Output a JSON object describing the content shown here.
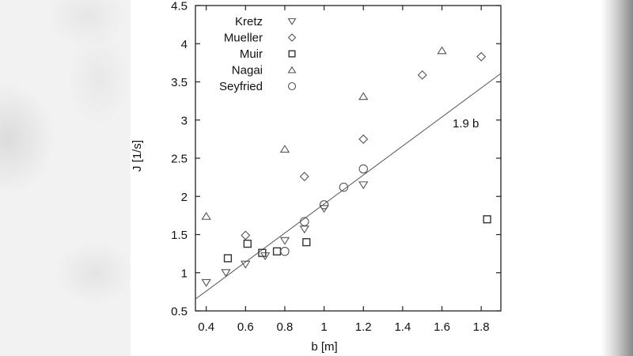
{
  "chart_data": {
    "type": "scatter",
    "title": "",
    "xlabel": "b [m]",
    "ylabel": "J [1/s]",
    "xlim": [
      0.345,
      1.9
    ],
    "ylim": [
      0.5,
      4.5
    ],
    "xticks": [
      "0.4",
      "0.6",
      "0.8",
      "1",
      "1.2",
      "1.4",
      "1.6",
      "1.8"
    ],
    "yticks": [
      "0.5",
      "1",
      "1.5",
      "2",
      "2.5",
      "3",
      "3.5",
      "4",
      "4.5"
    ],
    "grid": false,
    "legend_position": "upper-left",
    "series": [
      {
        "name": "Kretz",
        "marker": "triangle-down",
        "points": [
          [
            0.4,
            0.87
          ],
          [
            0.5,
            1.0
          ],
          [
            0.6,
            1.11
          ],
          [
            0.7,
            1.22
          ],
          [
            0.8,
            1.42
          ],
          [
            0.9,
            1.57
          ],
          [
            1.0,
            1.84
          ],
          [
            1.2,
            2.15
          ]
        ]
      },
      {
        "name": "Mueller",
        "marker": "diamond",
        "points": [
          [
            0.6,
            1.49
          ],
          [
            0.9,
            2.26
          ],
          [
            1.2,
            2.75
          ],
          [
            1.5,
            3.59
          ],
          [
            1.8,
            3.83
          ]
        ]
      },
      {
        "name": "Muir",
        "marker": "square",
        "points": [
          [
            0.51,
            1.19
          ],
          [
            0.61,
            1.38
          ],
          [
            0.685,
            1.26
          ],
          [
            0.76,
            1.28
          ],
          [
            0.91,
            1.4
          ],
          [
            1.83,
            1.7
          ]
        ]
      },
      {
        "name": "Nagai",
        "marker": "triangle-up",
        "points": [
          [
            0.4,
            1.74
          ],
          [
            0.8,
            2.62
          ],
          [
            1.2,
            3.31
          ],
          [
            1.6,
            3.91
          ]
        ]
      },
      {
        "name": "Seyfried",
        "marker": "circle",
        "points": [
          [
            0.8,
            1.28
          ],
          [
            0.9,
            1.67
          ],
          [
            1.0,
            1.89
          ],
          [
            1.1,
            2.12
          ],
          [
            1.2,
            2.36
          ]
        ]
      }
    ],
    "fit_line": {
      "label": "1.9 b",
      "slope": 1.9,
      "intercept": 0
    }
  }
}
